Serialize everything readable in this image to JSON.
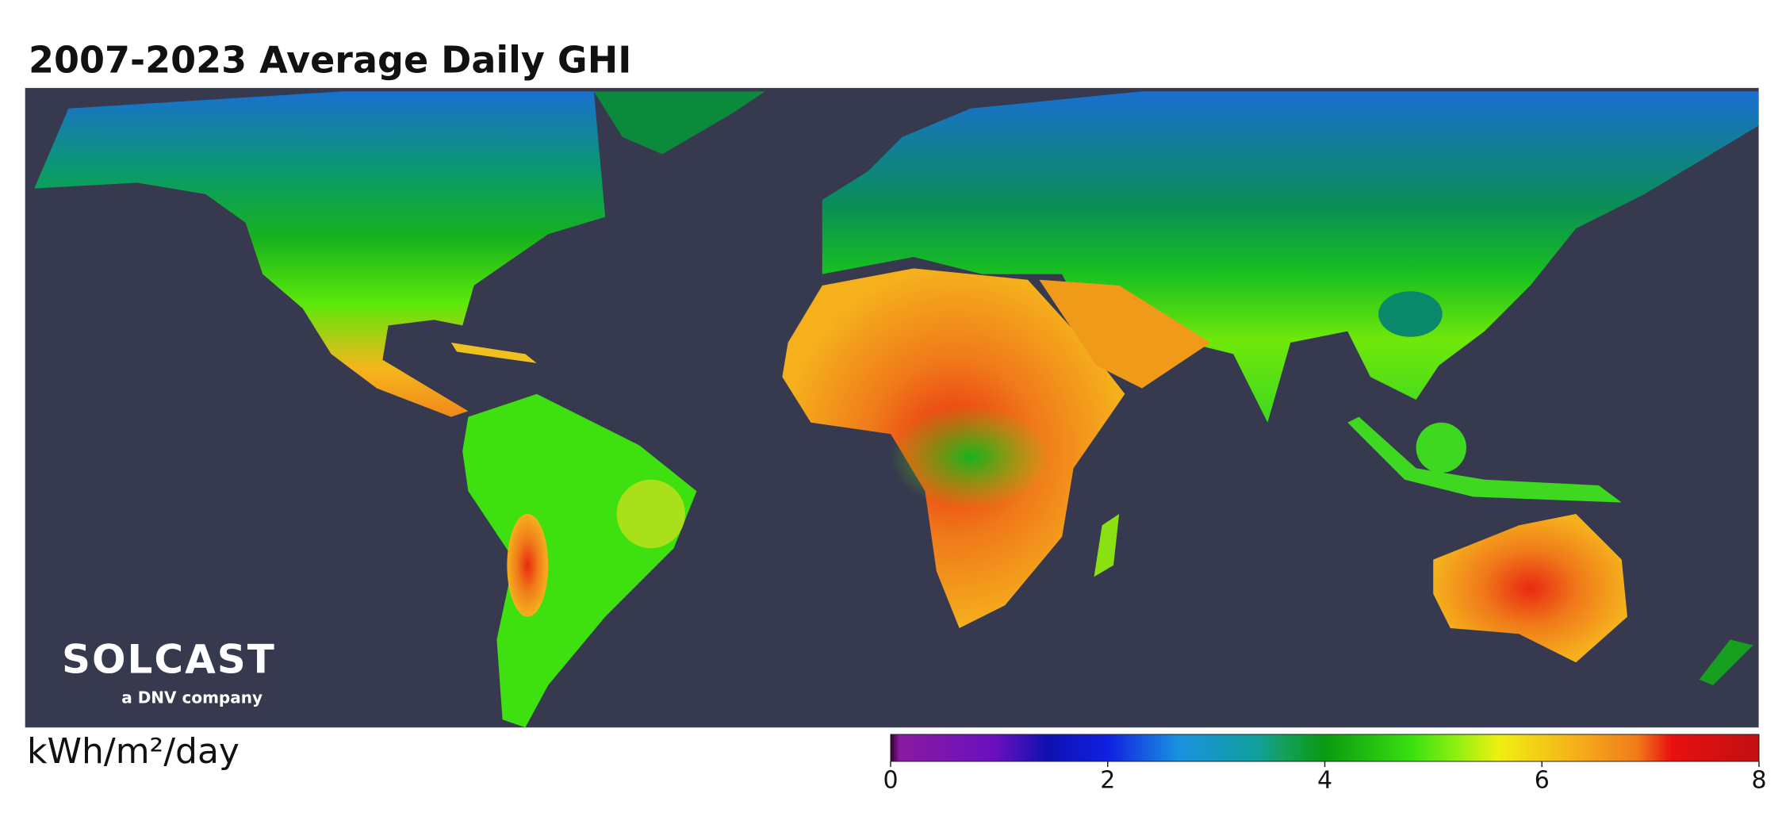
{
  "title": "2007-2023 Average Daily GHI",
  "logo": {
    "name": "SOLCAST",
    "tagline": "a DNV company"
  },
  "colorbar": {
    "label": "kWh/m²/day",
    "range": [
      0,
      8
    ],
    "ticks": [
      0,
      2,
      4,
      6,
      8
    ]
  }
}
